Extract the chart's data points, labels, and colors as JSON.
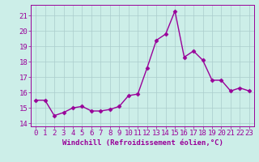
{
  "x": [
    0,
    1,
    2,
    3,
    4,
    5,
    6,
    7,
    8,
    9,
    10,
    11,
    12,
    13,
    14,
    15,
    16,
    17,
    18,
    19,
    20,
    21,
    22,
    23
  ],
  "y": [
    15.5,
    15.5,
    14.5,
    14.7,
    15.0,
    15.1,
    14.8,
    14.8,
    14.9,
    15.1,
    15.8,
    15.9,
    17.6,
    19.4,
    19.8,
    21.3,
    18.3,
    18.7,
    18.1,
    16.8,
    16.8,
    16.1,
    16.3,
    16.1
  ],
  "line_color": "#990099",
  "marker": "D",
  "marker_size": 2.5,
  "bg_color": "#cceee8",
  "grid_color": "#aacccc",
  "xlabel": "Windchill (Refroidissement éolien,°C)",
  "tick_color": "#990099",
  "ylim": [
    13.8,
    21.7
  ],
  "yticks": [
    14,
    15,
    16,
    17,
    18,
    19,
    20,
    21
  ],
  "xlim": [
    -0.5,
    23.5
  ],
  "xticks": [
    0,
    1,
    2,
    3,
    4,
    5,
    6,
    7,
    8,
    9,
    10,
    11,
    12,
    13,
    14,
    15,
    16,
    17,
    18,
    19,
    20,
    21,
    22,
    23
  ],
  "line_width": 1.0,
  "font_size": 6.5,
  "xlabel_fontsize": 6.5
}
